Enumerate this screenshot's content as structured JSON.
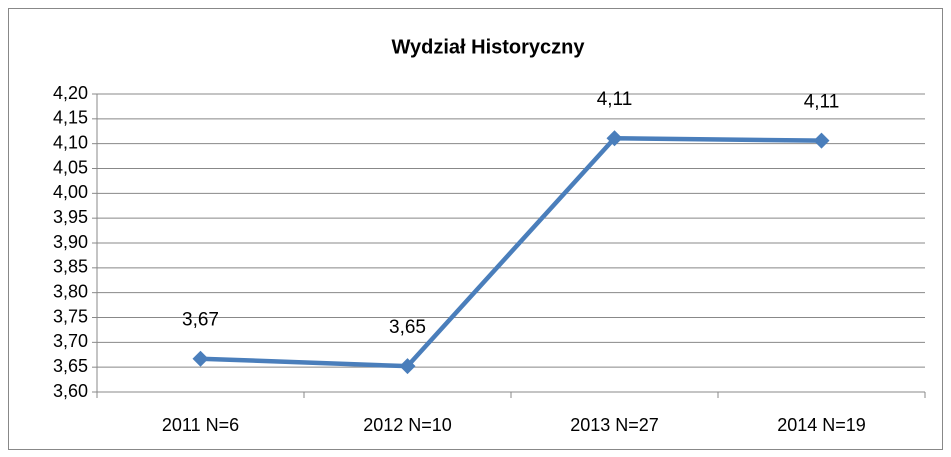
{
  "chart_data": {
    "type": "line",
    "title": "Wydział Historyczny",
    "categories": [
      "2011 N=6",
      "2012 N=10",
      "2013 N=27",
      "2014 N=19"
    ],
    "series": [
      {
        "name": "Wydział Historyczny",
        "color": "#4a7ebb",
        "values": [
          3.667,
          3.652,
          4.111,
          4.106
        ],
        "value_labels": [
          "3,67",
          "3,65",
          "4,11",
          "4,11"
        ]
      }
    ],
    "ylim": [
      3.6,
      4.2
    ],
    "yticks": [
      {
        "value": 3.6,
        "label": "3,60"
      },
      {
        "value": 3.65,
        "label": "3,65"
      },
      {
        "value": 3.7,
        "label": "3,70"
      },
      {
        "value": 3.75,
        "label": "3,75"
      },
      {
        "value": 3.8,
        "label": "3,80"
      },
      {
        "value": 3.85,
        "label": "3,85"
      },
      {
        "value": 3.9,
        "label": "3,90"
      },
      {
        "value": 3.95,
        "label": "3,95"
      },
      {
        "value": 4.0,
        "label": "4,00"
      },
      {
        "value": 4.05,
        "label": "4,05"
      },
      {
        "value": 4.1,
        "label": "4,10"
      },
      {
        "value": 4.15,
        "label": "4,15"
      },
      {
        "value": 4.2,
        "label": "4,20"
      }
    ],
    "grid": true,
    "legend": false
  }
}
